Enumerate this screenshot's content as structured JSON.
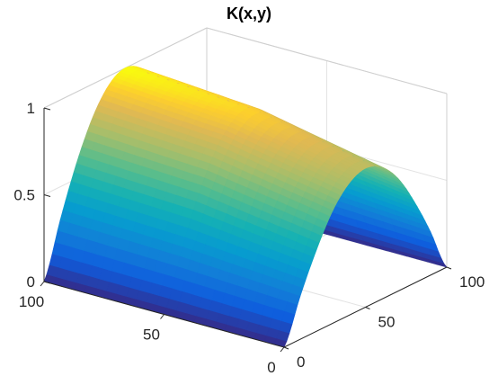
{
  "chart_data": {
    "type": "surface",
    "title": "K(x,y)",
    "xlabel": "",
    "ylabel": "",
    "zlabel": "",
    "colormap": "parula",
    "grid": true,
    "x_range": [
      0,
      100
    ],
    "y_range": [
      0,
      100
    ],
    "z_range": [
      0,
      1
    ],
    "x_ticks": [
      "0",
      "50",
      "100"
    ],
    "y_ticks": [
      "0",
      "50",
      "100"
    ],
    "z_ticks": [
      "0",
      "0.5",
      "1"
    ],
    "surface": {
      "formula": "sin(pi*x/100) * (1 - 0.2*(1 - y/100)^2)",
      "samples_x": [
        0,
        10,
        20,
        30,
        40,
        50,
        60,
        70,
        80,
        90,
        100
      ],
      "samples_y": [
        0,
        50,
        100
      ],
      "values": [
        [
          0.0,
          0.25,
          0.47,
          0.65,
          0.76,
          0.8,
          0.76,
          0.65,
          0.47,
          0.25,
          0.0
        ],
        [
          0.0,
          0.29,
          0.56,
          0.77,
          0.9,
          0.95,
          0.9,
          0.77,
          0.56,
          0.29,
          0.0
        ],
        [
          0.0,
          0.31,
          0.59,
          0.81,
          0.95,
          1.0,
          0.95,
          0.81,
          0.59,
          0.31,
          0.0
        ]
      ]
    }
  }
}
